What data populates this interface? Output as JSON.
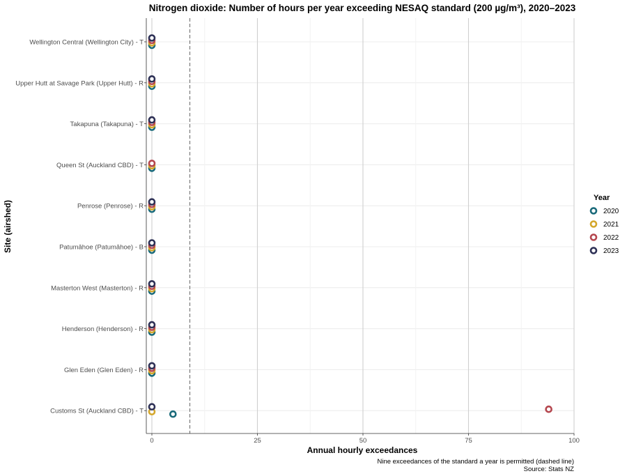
{
  "chart_data": {
    "type": "scatter",
    "title": "Nitrogen dioxide: Number of hours per year exceeding NESAQ standard (200 µg/m³), 2020–2023",
    "xlabel": "Annual hourly exceedances",
    "ylabel": "Site (airshed)",
    "xlim": [
      0,
      100
    ],
    "x_ticks": [
      0,
      25,
      50,
      75,
      100
    ],
    "reference_line": {
      "x": 9,
      "style": "dashed"
    },
    "categories": [
      "Wellington Central (Wellington City) - T",
      "Upper Hutt at Savage Park (Upper Hutt) - R",
      "Takapuna (Takapuna) - T",
      "Queen St (Auckland CBD) - T",
      "Penrose (Penrose) - R",
      "Patumāhoe (Patumāhoe) - B",
      "Masterton West (Masterton) - R",
      "Henderson (Henderson) - R",
      "Glen Eden (Glen Eden) - R",
      "Customs St (Auckland CBD) - T"
    ],
    "series": [
      {
        "name": "2020",
        "color": "#1a6a7a",
        "values": [
          0,
          0,
          0,
          0,
          0,
          0,
          0,
          0,
          0,
          5
        ]
      },
      {
        "name": "2021",
        "color": "#d4a72c",
        "values": [
          0,
          0,
          0,
          0,
          0,
          0,
          0,
          0,
          0,
          0
        ]
      },
      {
        "name": "2022",
        "color": "#b5474f",
        "values": [
          0,
          0,
          0,
          0,
          0,
          0,
          0,
          0,
          0,
          94
        ]
      },
      {
        "name": "2023",
        "color": "#2e3156",
        "values": [
          0,
          0,
          0,
          null,
          0,
          0,
          0,
          0,
          0,
          0
        ]
      }
    ],
    "legend": {
      "title": "Year",
      "position": "right"
    },
    "grid": true,
    "caption_lines": [
      "Nine exceedances of the standard a year is permitted (dashed line)",
      "Source: Stats NZ"
    ]
  }
}
